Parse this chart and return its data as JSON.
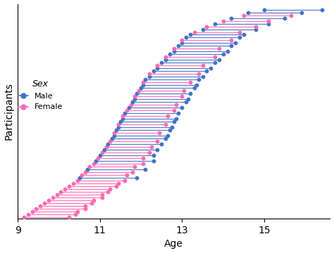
{
  "xlabel": "Age",
  "ylabel": "Participants",
  "xlim": [
    9,
    16.6
  ],
  "ylim": [
    -0.5,
    76
  ],
  "xticks": [
    9,
    11,
    13,
    15
  ],
  "male_color": "#4472C4",
  "female_color": "#FF69B4",
  "background_color": "#FFFFFF",
  "male_t1": [
    10.5,
    10.7,
    10.9,
    11.0,
    11.1,
    11.2,
    11.3,
    11.35,
    11.4,
    11.45,
    11.5,
    11.55,
    11.6,
    11.7,
    11.8,
    11.85,
    11.9,
    12.0,
    12.05,
    12.1,
    12.2,
    12.3,
    12.4,
    12.5,
    12.6,
    12.7,
    12.8,
    12.9,
    13.0,
    13.1,
    13.2,
    13.5,
    13.8,
    14.2,
    14.6,
    15.0
  ],
  "male_interval": [
    1.4,
    1.4,
    1.4,
    1.3,
    1.3,
    1.3,
    1.3,
    1.3,
    1.3,
    1.3,
    1.3,
    1.3,
    1.3,
    1.3,
    1.3,
    1.3,
    1.3,
    1.3,
    1.3,
    1.3,
    1.3,
    1.3,
    1.3,
    1.3,
    1.3,
    1.3,
    1.3,
    1.3,
    1.3,
    1.3,
    1.3,
    1.3,
    1.3,
    1.3,
    1.3,
    1.4
  ],
  "female_t1": [
    9.15,
    9.25,
    9.35,
    9.45,
    9.55,
    9.65,
    9.75,
    9.85,
    9.95,
    10.05,
    10.15,
    10.25,
    10.35,
    10.45,
    10.55,
    10.65,
    10.75,
    10.85,
    10.95,
    11.05,
    11.15,
    11.25,
    11.35,
    11.45,
    11.55,
    11.65,
    11.75,
    11.85,
    11.95,
    12.05,
    12.2,
    12.4,
    12.6,
    12.8,
    13.0,
    13.3,
    13.6,
    14.0,
    14.5
  ],
  "female_interval": [
    1.1,
    1.15,
    1.1,
    1.2,
    1.1,
    1.15,
    1.1,
    1.2,
    1.1,
    1.15,
    1.1,
    1.15,
    1.1,
    1.15,
    1.1,
    1.15,
    1.1,
    1.2,
    1.1,
    1.15,
    1.1,
    1.15,
    1.1,
    1.15,
    1.1,
    1.15,
    1.1,
    1.15,
    1.1,
    1.15,
    1.2,
    1.1,
    1.2,
    1.1,
    1.2,
    1.1,
    1.2,
    1.1,
    1.15
  ]
}
